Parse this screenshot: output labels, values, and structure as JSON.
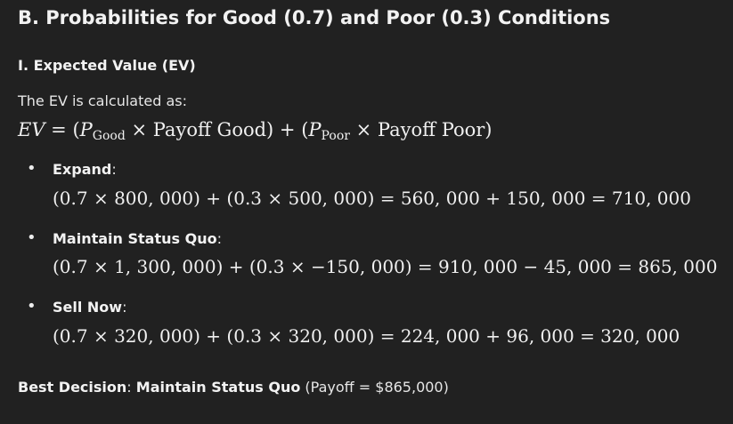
{
  "section_heading": "B. Probabilities for Good (0.7) and Poor (0.3) Conditions",
  "subheading": "I. Expected Value (EV)",
  "intro": "The EV is calculated as:",
  "formula": {
    "lhs": "EV",
    "eq": " = (",
    "p1": "P",
    "p1_sub": "Good",
    "t1": " × Payoff Good) + (",
    "p2": "P",
    "p2_sub": "Poor",
    "t2": " × Payoff Poor)"
  },
  "options": [
    {
      "name": "Expand",
      "colon": ":",
      "calc": "(0.7 × 800, 000) + (0.3 × 500, 000) = 560, 000 + 150, 000 = 710, 000"
    },
    {
      "name": "Maintain Status Quo",
      "colon": ":",
      "calc": "(0.7 × 1, 300, 000) + (0.3 × −150, 000) = 910, 000 − 45, 000 = 865, 000"
    },
    {
      "name": "Sell Now",
      "colon": ":",
      "calc": "(0.7 × 320, 000) + (0.3 × 320, 000) = 224, 000 + 96, 000 = 320, 000"
    }
  ],
  "best": {
    "label": "Best Decision",
    "sep": ": ",
    "choice": "Maintain Status Quo",
    "detail": " (Payoff = $865,000)"
  }
}
